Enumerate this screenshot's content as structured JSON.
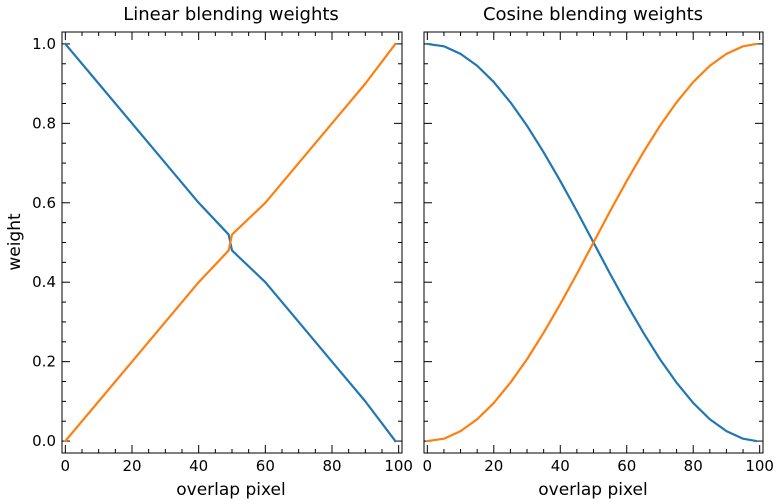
{
  "chart_data": [
    {
      "type": "line",
      "title": "Linear blending weights",
      "xlabel": "overlap pixel",
      "ylabel": "weight",
      "xlim": [
        -1,
        101
      ],
      "ylim": [
        -0.03,
        1.03
      ],
      "xticks": [
        0,
        20,
        40,
        60,
        80,
        100
      ],
      "yticks": [
        0.0,
        0.2,
        0.4,
        0.6,
        0.8,
        1.0
      ],
      "ytick_labels": [
        "0.0",
        "0.2",
        "0.4",
        "0.6",
        "0.8",
        "1.0"
      ],
      "grid": false,
      "series": [
        {
          "color": "#1f77b4",
          "x": [
            0,
            10,
            20,
            30,
            40,
            49,
            50,
            60,
            70,
            80,
            90,
            99
          ],
          "y": [
            1.0,
            0.9,
            0.8,
            0.7,
            0.6,
            0.52,
            0.48,
            0.4,
            0.3,
            0.2,
            0.1,
            0.0
          ]
        },
        {
          "color": "#ff7f0e",
          "x": [
            0,
            10,
            20,
            30,
            40,
            49,
            50,
            60,
            70,
            80,
            90,
            99
          ],
          "y": [
            0.0,
            0.1,
            0.2,
            0.3,
            0.4,
            0.48,
            0.52,
            0.6,
            0.7,
            0.8,
            0.9,
            1.0
          ]
        }
      ]
    },
    {
      "type": "line",
      "title": "Cosine blending weights",
      "xlabel": "overlap pixel",
      "ylabel": "",
      "xlim": [
        -1,
        101
      ],
      "ylim": [
        -0.03,
        1.03
      ],
      "xticks": [
        0,
        20,
        40,
        60,
        80,
        100
      ],
      "yticks": [
        0.0,
        0.2,
        0.4,
        0.6,
        0.8,
        1.0
      ],
      "ytick_labels": [],
      "grid": false,
      "series": [
        {
          "color": "#1f77b4",
          "x": [
            0,
            5,
            10,
            15,
            20,
            25,
            30,
            35,
            40,
            45,
            50,
            55,
            60,
            65,
            70,
            75,
            80,
            85,
            90,
            95,
            99
          ],
          "y": [
            1.0,
            0.994,
            0.975,
            0.945,
            0.904,
            0.853,
            0.794,
            0.727,
            0.655,
            0.579,
            0.5,
            0.421,
            0.345,
            0.273,
            0.206,
            0.147,
            0.096,
            0.055,
            0.025,
            0.006,
            0.0
          ]
        },
        {
          "color": "#ff7f0e",
          "x": [
            0,
            5,
            10,
            15,
            20,
            25,
            30,
            35,
            40,
            45,
            50,
            55,
            60,
            65,
            70,
            75,
            80,
            85,
            90,
            95,
            99
          ],
          "y": [
            0.0,
            0.006,
            0.025,
            0.055,
            0.096,
            0.147,
            0.206,
            0.273,
            0.345,
            0.421,
            0.5,
            0.579,
            0.655,
            0.727,
            0.794,
            0.853,
            0.904,
            0.945,
            0.975,
            0.994,
            1.0
          ]
        }
      ]
    }
  ]
}
